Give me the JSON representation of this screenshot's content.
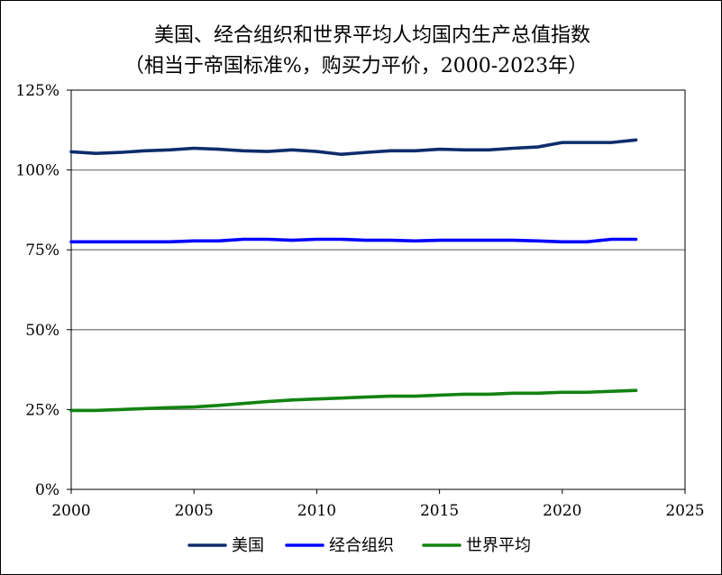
{
  "chart_data": {
    "type": "line",
    "title": "美国、经合组织和世界平均人均国内生产总值指数",
    "subtitle": "（相当于帝国标准%，购买力平价，2000-2023年）",
    "xlabel": "",
    "ylabel": "",
    "xlim": [
      2000,
      2025
    ],
    "ylim": [
      0,
      125
    ],
    "x_ticks": [
      "2000",
      "2005",
      "2010",
      "2015",
      "2020",
      "2025"
    ],
    "y_ticks": [
      "0%",
      "25%",
      "50%",
      "75%",
      "100%",
      "125%"
    ],
    "grid": "horizontal",
    "legend_position": "bottom",
    "x": [
      2000,
      2001,
      2002,
      2003,
      2004,
      2005,
      2006,
      2007,
      2008,
      2009,
      2010,
      2011,
      2012,
      2013,
      2014,
      2015,
      2016,
      2017,
      2018,
      2019,
      2020,
      2021,
      2022,
      2023
    ],
    "series": [
      {
        "name": "美国",
        "color": "#0d2d6b",
        "values": [
          105.7,
          105.2,
          105.5,
          106.0,
          106.3,
          106.8,
          106.5,
          106.0,
          105.8,
          106.3,
          105.8,
          104.9,
          105.5,
          106.0,
          106.0,
          106.5,
          106.3,
          106.3,
          106.8,
          107.2,
          108.6,
          108.6,
          108.6,
          109.4
        ]
      },
      {
        "name": "经合组织",
        "color": "#0000ff",
        "values": [
          77.5,
          77.5,
          77.5,
          77.5,
          77.5,
          77.8,
          77.8,
          78.3,
          78.3,
          78.0,
          78.3,
          78.3,
          78.0,
          78.0,
          77.8,
          78.0,
          78.0,
          78.0,
          78.0,
          77.8,
          77.5,
          77.5,
          78.3,
          78.3
        ]
      },
      {
        "name": "世界平均",
        "color": "#118311",
        "values": [
          24.7,
          24.7,
          25.0,
          25.3,
          25.6,
          25.8,
          26.3,
          26.9,
          27.5,
          28.0,
          28.3,
          28.6,
          28.9,
          29.2,
          29.2,
          29.5,
          29.8,
          29.8,
          30.1,
          30.1,
          30.4,
          30.4,
          30.7,
          31.0
        ]
      }
    ]
  }
}
